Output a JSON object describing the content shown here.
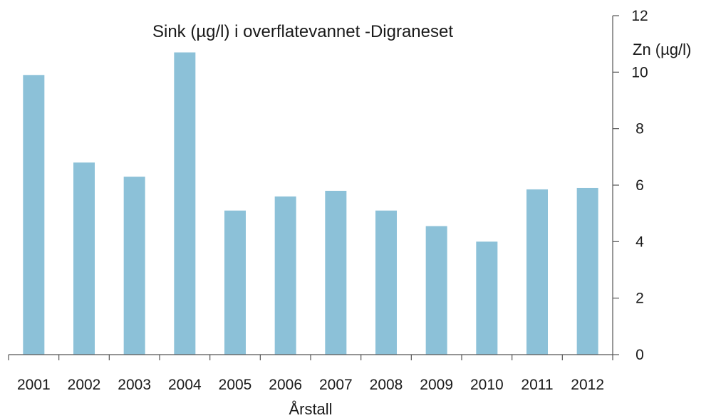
{
  "chart_data": {
    "type": "bar",
    "title": "Sink (µg/l) i overflatevannet -Digraneset",
    "xlabel": "Årstall",
    "ylabel": "Zn (µg/l)",
    "categories": [
      "2001",
      "2002",
      "2003",
      "2004",
      "2005",
      "2006",
      "2007",
      "2008",
      "2009",
      "2010",
      "2011",
      "2012"
    ],
    "values": [
      9.9,
      6.8,
      6.3,
      10.7,
      5.1,
      5.6,
      5.8,
      5.1,
      4.55,
      4.0,
      5.85,
      5.9
    ],
    "ylim": [
      0,
      12
    ],
    "yticks": [
      0,
      2,
      4,
      6,
      8,
      10,
      12
    ],
    "y_axis_side": "right",
    "grid": false,
    "bar_color": "#8cc1d8",
    "axis_color": "#555555"
  }
}
